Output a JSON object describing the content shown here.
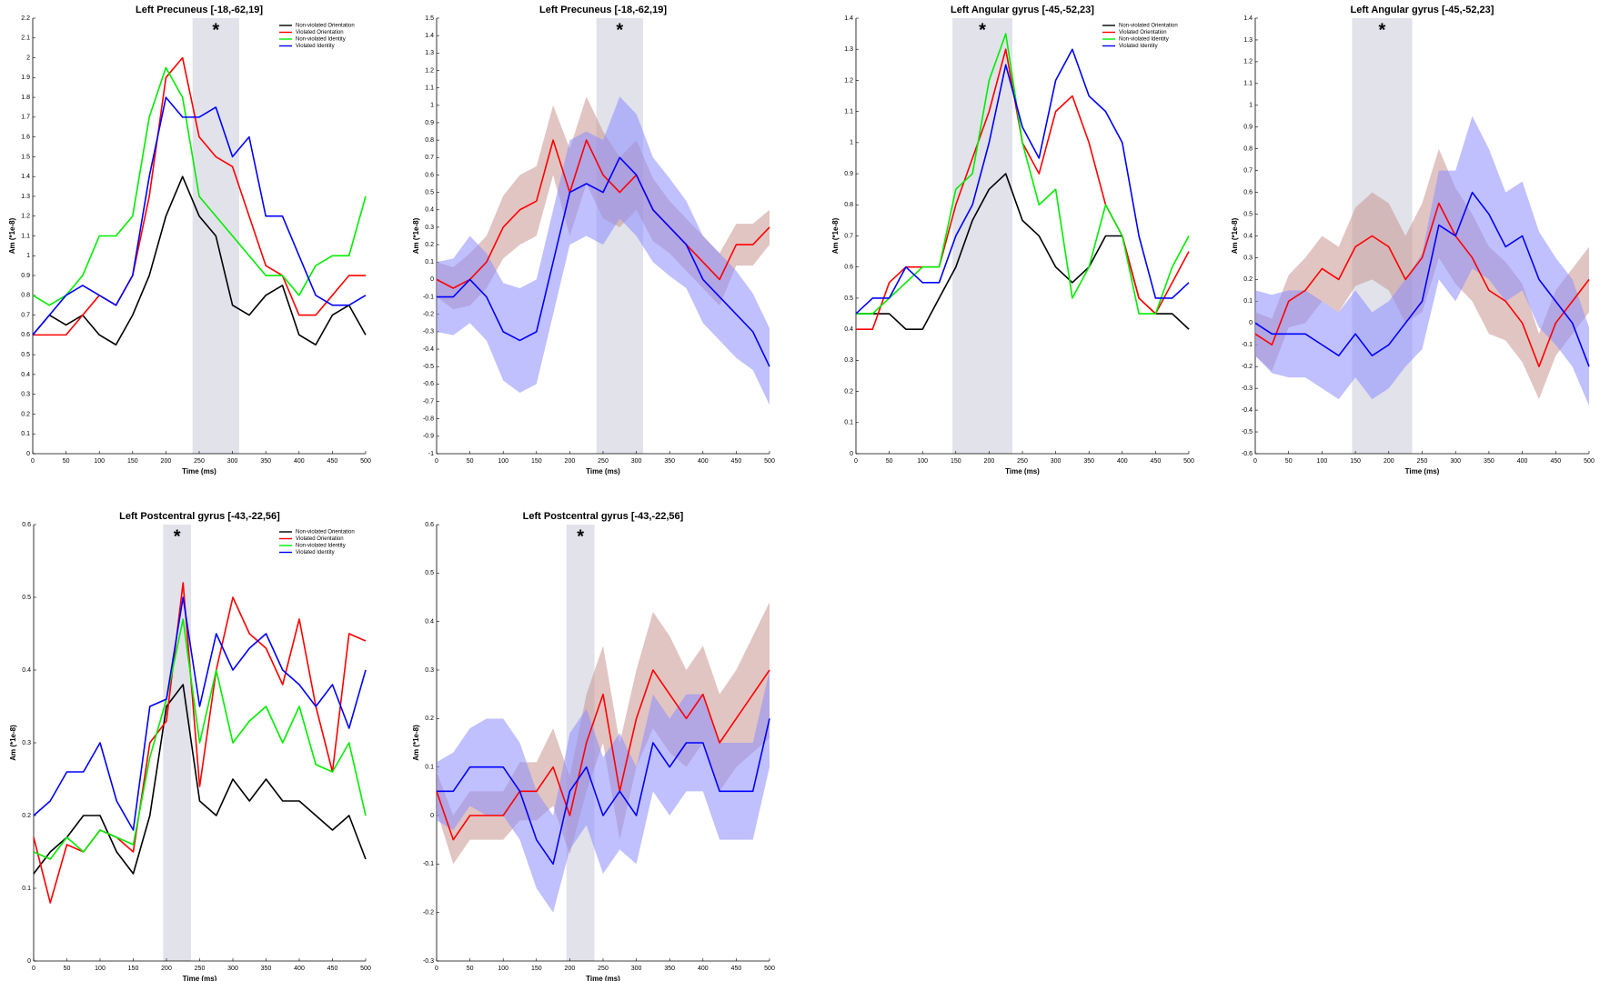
{
  "chart_data": [
    {
      "type": "line",
      "title": "Left Precuneus [-18,-62,19]",
      "xlabel": "Time (ms)",
      "ylabel": "Am (*1e-8)",
      "annotation": "*",
      "highlight": [
        240,
        310
      ],
      "x": [
        0,
        25,
        50,
        75,
        100,
        125,
        150,
        175,
        200,
        225,
        250,
        275,
        300,
        325,
        350,
        375,
        400,
        425,
        450,
        475,
        500
      ],
      "xlim": [
        0,
        500
      ],
      "xticks": [
        0,
        50,
        100,
        150,
        200,
        250,
        300,
        350,
        400,
        450,
        500
      ],
      "ylim": [
        0,
        2.2
      ],
      "yticks": [
        0,
        0.1,
        0.2,
        0.3,
        0.4,
        0.5,
        0.6,
        0.7,
        0.8,
        0.9,
        1,
        1.1,
        1.2,
        1.3,
        1.4,
        1.5,
        1.6,
        1.7,
        1.8,
        1.9,
        2,
        2.1,
        2.2
      ],
      "legend": "upper right",
      "series": [
        {
          "name": "Non-violated Orientation",
          "color": "#000000",
          "values": [
            0.6,
            0.7,
            0.65,
            0.7,
            0.6,
            0.55,
            0.7,
            0.9,
            1.2,
            1.4,
            1.2,
            1.1,
            0.75,
            0.7,
            0.8,
            0.85,
            0.6,
            0.55,
            0.7,
            0.75,
            0.6
          ]
        },
        {
          "name": "Violated Orientation",
          "color": "#ff0000",
          "values": [
            0.6,
            0.6,
            0.6,
            0.7,
            0.8,
            0.75,
            0.9,
            1.3,
            1.9,
            2.0,
            1.6,
            1.5,
            1.45,
            1.2,
            0.95,
            0.9,
            0.7,
            0.7,
            0.8,
            0.9,
            0.9
          ]
        },
        {
          "name": "Non-violated Identity",
          "color": "#00ee00",
          "values": [
            0.8,
            0.75,
            0.8,
            0.9,
            1.1,
            1.1,
            1.2,
            1.7,
            1.95,
            1.8,
            1.3,
            1.2,
            1.1,
            1.0,
            0.9,
            0.9,
            0.8,
            0.95,
            1.0,
            1.0,
            1.3
          ]
        },
        {
          "name": "Violated Identity",
          "color": "#0000ff",
          "values": [
            0.6,
            0.7,
            0.8,
            0.85,
            0.8,
            0.75,
            0.9,
            1.4,
            1.8,
            1.7,
            1.7,
            1.75,
            1.5,
            1.6,
            1.2,
            1.2,
            1.0,
            0.8,
            0.75,
            0.75,
            0.8
          ]
        }
      ]
    },
    {
      "type": "line",
      "title": "Left Precuneus [-18,-62,19]",
      "xlabel": "Time (ms)",
      "ylabel": "Am (*1e-8)",
      "annotation": "*",
      "highlight": [
        240,
        310
      ],
      "x": [
        0,
        25,
        50,
        75,
        100,
        125,
        150,
        175,
        200,
        225,
        250,
        275,
        300,
        325,
        350,
        375,
        400,
        425,
        450,
        475,
        500
      ],
      "xlim": [
        0,
        500
      ],
      "xticks": [
        0,
        50,
        100,
        150,
        200,
        250,
        300,
        350,
        400,
        450,
        500
      ],
      "ylim": [
        -1,
        1.5
      ],
      "yticks": [
        -1,
        -0.9,
        -0.8,
        -0.7,
        -0.6,
        -0.5,
        -0.4,
        -0.3,
        -0.2,
        -0.1,
        0,
        0.1,
        0.2,
        0.3,
        0.4,
        0.5,
        0.6,
        0.7,
        0.8,
        0.9,
        1,
        1.1,
        1.2,
        1.3,
        1.4,
        1.5
      ],
      "series": [
        {
          "color": "#ff0000",
          "band_color": "#c8958f",
          "values": [
            0,
            -0.05,
            0,
            0.1,
            0.3,
            0.4,
            0.45,
            0.8,
            0.5,
            0.8,
            0.6,
            0.5,
            0.6,
            0.4,
            0.3,
            0.2,
            0.1,
            0.0,
            0.2,
            0.2,
            0.3
          ],
          "error": [
            0.1,
            0.12,
            0.15,
            0.15,
            0.18,
            0.2,
            0.2,
            0.2,
            0.25,
            0.25,
            0.25,
            0.2,
            0.2,
            0.18,
            0.15,
            0.15,
            0.15,
            0.15,
            0.12,
            0.12,
            0.1
          ]
        },
        {
          "color": "#0000ff",
          "band_color": "#8c8cff",
          "values": [
            -0.1,
            -0.1,
            0.0,
            -0.1,
            -0.3,
            -0.35,
            -0.3,
            0.1,
            0.5,
            0.55,
            0.5,
            0.7,
            0.6,
            0.4,
            0.3,
            0.2,
            0.0,
            -0.1,
            -0.2,
            -0.3,
            -0.5
          ],
          "error": [
            0.2,
            0.22,
            0.25,
            0.25,
            0.28,
            0.3,
            0.3,
            0.3,
            0.3,
            0.3,
            0.3,
            0.35,
            0.35,
            0.3,
            0.28,
            0.25,
            0.25,
            0.25,
            0.25,
            0.22,
            0.22
          ]
        }
      ]
    },
    {
      "type": "line",
      "title": "Left Angular gyrus [-45,-52,23]",
      "xlabel": "Time (ms)",
      "ylabel": "Am (*1e-8)",
      "annotation": "*",
      "highlight": [
        145,
        235
      ],
      "x": [
        0,
        25,
        50,
        75,
        100,
        125,
        150,
        175,
        200,
        225,
        250,
        275,
        300,
        325,
        350,
        375,
        400,
        425,
        450,
        475,
        500
      ],
      "xlim": [
        0,
        500
      ],
      "xticks": [
        0,
        50,
        100,
        150,
        200,
        250,
        300,
        350,
        400,
        450,
        500
      ],
      "ylim": [
        0,
        1.4
      ],
      "yticks": [
        0,
        0.1,
        0.2,
        0.3,
        0.4,
        0.5,
        0.6,
        0.7,
        0.8,
        0.9,
        1,
        1.1,
        1.2,
        1.3,
        1.4
      ],
      "legend": "upper right",
      "series": [
        {
          "name": "Non-violated Orientation",
          "color": "#000000",
          "values": [
            0.45,
            0.45,
            0.45,
            0.4,
            0.4,
            0.5,
            0.6,
            0.75,
            0.85,
            0.9,
            0.75,
            0.7,
            0.6,
            0.55,
            0.6,
            0.7,
            0.7,
            0.5,
            0.45,
            0.45,
            0.4
          ]
        },
        {
          "name": "Violated Orientation",
          "color": "#ff0000",
          "values": [
            0.4,
            0.4,
            0.55,
            0.6,
            0.6,
            0.6,
            0.8,
            0.95,
            1.1,
            1.3,
            1.0,
            0.9,
            1.1,
            1.15,
            1.0,
            0.8,
            0.7,
            0.5,
            0.45,
            0.55,
            0.65
          ]
        },
        {
          "name": "Non-violated Identity",
          "color": "#00ee00",
          "values": [
            0.45,
            0.45,
            0.5,
            0.55,
            0.6,
            0.6,
            0.85,
            0.9,
            1.2,
            1.35,
            1.0,
            0.8,
            0.85,
            0.5,
            0.6,
            0.8,
            0.7,
            0.45,
            0.45,
            0.6,
            0.7
          ]
        },
        {
          "name": "Violated Identity",
          "color": "#0000ff",
          "values": [
            0.45,
            0.5,
            0.5,
            0.6,
            0.55,
            0.55,
            0.7,
            0.8,
            1.0,
            1.25,
            1.05,
            0.95,
            1.2,
            1.3,
            1.15,
            1.1,
            1.0,
            0.7,
            0.5,
            0.5,
            0.55
          ]
        }
      ]
    },
    {
      "type": "line",
      "title": "Left Angular gyrus [-45,-52,23]",
      "xlabel": "Time (ms)",
      "ylabel": "Am (*1e-8)",
      "annotation": "*",
      "highlight": [
        145,
        235
      ],
      "x": [
        0,
        25,
        50,
        75,
        100,
        125,
        150,
        175,
        200,
        225,
        250,
        275,
        300,
        325,
        350,
        375,
        400,
        425,
        450,
        475,
        500
      ],
      "xlim": [
        0,
        500
      ],
      "xticks": [
        0,
        50,
        100,
        150,
        200,
        250,
        300,
        350,
        400,
        450,
        500
      ],
      "ylim": [
        -0.6,
        1.4
      ],
      "yticks": [
        -0.6,
        -0.5,
        -0.4,
        -0.3,
        -0.2,
        -0.1,
        0,
        0.1,
        0.2,
        0.3,
        0.4,
        0.5,
        0.6,
        0.7,
        0.8,
        0.9,
        1,
        1.1,
        1.2,
        1.3,
        1.4
      ],
      "series": [
        {
          "color": "#ff0000",
          "band_color": "#c8958f",
          "values": [
            -0.05,
            -0.1,
            0.1,
            0.15,
            0.25,
            0.2,
            0.35,
            0.4,
            0.35,
            0.2,
            0.3,
            0.55,
            0.4,
            0.3,
            0.15,
            0.1,
            0.0,
            -0.2,
            0.0,
            0.1,
            0.2
          ],
          "error": [
            0.1,
            0.12,
            0.12,
            0.15,
            0.15,
            0.15,
            0.18,
            0.2,
            0.2,
            0.2,
            0.25,
            0.25,
            0.22,
            0.2,
            0.2,
            0.18,
            0.18,
            0.15,
            0.15,
            0.15,
            0.15
          ]
        },
        {
          "color": "#0000ff",
          "band_color": "#8c8cff",
          "values": [
            0,
            -0.05,
            -0.05,
            -0.05,
            -0.1,
            -0.15,
            -0.05,
            -0.15,
            -0.1,
            0,
            0.1,
            0.45,
            0.4,
            0.6,
            0.5,
            0.35,
            0.4,
            0.2,
            0.1,
            0.0,
            -0.2
          ],
          "error": [
            0.15,
            0.18,
            0.2,
            0.2,
            0.2,
            0.2,
            0.2,
            0.2,
            0.2,
            0.2,
            0.22,
            0.25,
            0.3,
            0.35,
            0.3,
            0.25,
            0.25,
            0.22,
            0.2,
            0.2,
            0.18
          ]
        }
      ]
    },
    {
      "type": "line",
      "title": "Left Postcentral gyrus [-43,-22,56]",
      "xlabel": "Time (ms)",
      "ylabel": "Am (*1e-8)",
      "annotation": "*",
      "highlight": [
        195,
        237
      ],
      "x": [
        0,
        25,
        50,
        75,
        100,
        125,
        150,
        175,
        200,
        225,
        250,
        275,
        300,
        325,
        350,
        375,
        400,
        425,
        450,
        475,
        500
      ],
      "xlim": [
        0,
        500
      ],
      "xticks": [
        0,
        50,
        100,
        150,
        200,
        250,
        300,
        350,
        400,
        450,
        500
      ],
      "ylim": [
        0,
        0.6
      ],
      "yticks": [
        0,
        0.1,
        0.2,
        0.3,
        0.4,
        0.5,
        0.6
      ],
      "legend": "upper right",
      "series": [
        {
          "name": "Non-violated Orientation",
          "color": "#000000",
          "values": [
            0.12,
            0.15,
            0.17,
            0.2,
            0.2,
            0.15,
            0.12,
            0.2,
            0.35,
            0.38,
            0.22,
            0.2,
            0.25,
            0.22,
            0.25,
            0.22,
            0.22,
            0.2,
            0.18,
            0.2,
            0.14
          ]
        },
        {
          "name": "Violated Orientation",
          "color": "#ff0000",
          "values": [
            0.17,
            0.08,
            0.16,
            0.15,
            0.18,
            0.17,
            0.15,
            0.3,
            0.33,
            0.52,
            0.24,
            0.4,
            0.5,
            0.45,
            0.43,
            0.38,
            0.47,
            0.35,
            0.26,
            0.45,
            0.44
          ]
        },
        {
          "name": "Non-violated Identity",
          "color": "#00ee00",
          "values": [
            0.15,
            0.14,
            0.17,
            0.15,
            0.18,
            0.17,
            0.16,
            0.28,
            0.36,
            0.47,
            0.3,
            0.4,
            0.3,
            0.33,
            0.35,
            0.3,
            0.35,
            0.27,
            0.26,
            0.3,
            0.2
          ]
        },
        {
          "name": "Violated Identity",
          "color": "#0000ff",
          "values": [
            0.2,
            0.22,
            0.26,
            0.26,
            0.3,
            0.22,
            0.18,
            0.35,
            0.36,
            0.5,
            0.35,
            0.45,
            0.4,
            0.43,
            0.45,
            0.4,
            0.38,
            0.35,
            0.38,
            0.32,
            0.4
          ]
        }
      ]
    },
    {
      "type": "line",
      "title": "Left Postcentral gyrus [-43,-22,56]",
      "xlabel": "Time (ms)",
      "ylabel": "Am (*1e-8)",
      "annotation": "*",
      "highlight": [
        195,
        237
      ],
      "x": [
        0,
        25,
        50,
        75,
        100,
        125,
        150,
        175,
        200,
        225,
        250,
        275,
        300,
        325,
        350,
        375,
        400,
        425,
        450,
        475,
        500
      ],
      "xlim": [
        0,
        500
      ],
      "xticks": [
        0,
        50,
        100,
        150,
        200,
        250,
        300,
        350,
        400,
        450,
        500
      ],
      "ylim": [
        -0.3,
        0.6
      ],
      "yticks": [
        -0.3,
        -0.2,
        -0.1,
        0,
        0.1,
        0.2,
        0.3,
        0.4,
        0.5,
        0.6
      ],
      "series": [
        {
          "color": "#ff0000",
          "band_color": "#c8958f",
          "values": [
            0.05,
            -0.05,
            0.0,
            0.0,
            0.0,
            0.05,
            0.05,
            0.1,
            0.0,
            0.15,
            0.25,
            0.05,
            0.2,
            0.3,
            0.25,
            0.2,
            0.25,
            0.15,
            0.2,
            0.25,
            0.3
          ],
          "error": [
            0.04,
            0.05,
            0.05,
            0.05,
            0.05,
            0.06,
            0.06,
            0.08,
            0.08,
            0.1,
            0.1,
            0.1,
            0.1,
            0.12,
            0.12,
            0.1,
            0.1,
            0.1,
            0.1,
            0.12,
            0.14
          ]
        },
        {
          "color": "#0000ff",
          "band_color": "#8c8cff",
          "values": [
            0.05,
            0.05,
            0.1,
            0.1,
            0.1,
            0.05,
            -0.05,
            -0.1,
            0.05,
            0.1,
            0.0,
            0.05,
            0.0,
            0.15,
            0.1,
            0.15,
            0.15,
            0.05,
            0.05,
            0.05,
            0.2
          ],
          "error": [
            0.06,
            0.08,
            0.08,
            0.1,
            0.1,
            0.1,
            0.1,
            0.1,
            0.12,
            0.12,
            0.12,
            0.12,
            0.1,
            0.1,
            0.1,
            0.1,
            0.1,
            0.1,
            0.1,
            0.1,
            0.1
          ]
        }
      ]
    }
  ]
}
